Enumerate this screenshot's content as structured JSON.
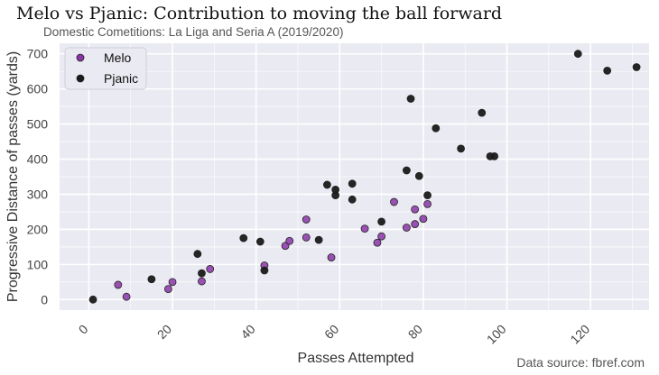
{
  "chart_data": {
    "type": "scatter",
    "title": "Melo vs Pjanic: Contribution to moving the ball forward",
    "subtitle": "Domestic Cometitions: La Liga and Seria A (2019/2020)",
    "xlabel": "Passes Attempted",
    "ylabel": "Progressive Distance of passes (yards)",
    "xlim": [
      -7,
      134
    ],
    "ylim": [
      -30,
      730
    ],
    "xticks": [
      0,
      20,
      40,
      60,
      80,
      100,
      120
    ],
    "yticks": [
      0,
      100,
      200,
      300,
      400,
      500,
      600,
      700
    ],
    "grid": true,
    "legend_position": "top-left",
    "source": "Data source: fbref.com",
    "series": [
      {
        "name": "Melo",
        "color": "#8B35A8",
        "points": [
          [
            7,
            42
          ],
          [
            9,
            8
          ],
          [
            19,
            30
          ],
          [
            20,
            50
          ],
          [
            27,
            52
          ],
          [
            29,
            87
          ],
          [
            42,
            97
          ],
          [
            47,
            153
          ],
          [
            48,
            167
          ],
          [
            52,
            228
          ],
          [
            52,
            177
          ],
          [
            58,
            120
          ],
          [
            66,
            202
          ],
          [
            69,
            162
          ],
          [
            70,
            180
          ],
          [
            73,
            278
          ],
          [
            76,
            205
          ],
          [
            78,
            257
          ],
          [
            78,
            215
          ],
          [
            80,
            230
          ],
          [
            81,
            272
          ]
        ]
      },
      {
        "name": "Pjanic",
        "color": "#1a1a1a",
        "points": [
          [
            1,
            0
          ],
          [
            15,
            58
          ],
          [
            26,
            130
          ],
          [
            27,
            75
          ],
          [
            37,
            175
          ],
          [
            41,
            165
          ],
          [
            42,
            83
          ],
          [
            55,
            170
          ],
          [
            57,
            327
          ],
          [
            59,
            313
          ],
          [
            59,
            297
          ],
          [
            63,
            330
          ],
          [
            63,
            285
          ],
          [
            70,
            222
          ],
          [
            76,
            368
          ],
          [
            77,
            572
          ],
          [
            79,
            352
          ],
          [
            81,
            297
          ],
          [
            83,
            488
          ],
          [
            89,
            430
          ],
          [
            94,
            532
          ],
          [
            96,
            408
          ],
          [
            97,
            408
          ],
          [
            117,
            700
          ],
          [
            124,
            652
          ],
          [
            131,
            662
          ]
        ]
      }
    ]
  }
}
